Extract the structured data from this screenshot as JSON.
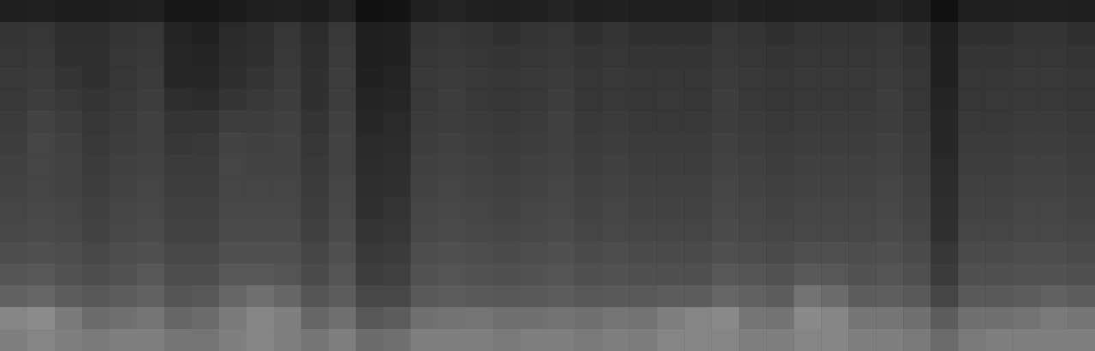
{
  "chart_data": {
    "type": "heatmap",
    "tick_labels": false,
    "grid": false,
    "cells": [
      [
        12,
        13,
        11,
        11,
        12,
        13,
        9,
        9,
        10,
        12,
        13,
        11,
        14,
        7,
        8,
        13,
        14,
        13,
        12,
        13,
        14,
        12,
        13,
        12,
        12,
        12,
        14,
        13,
        12,
        13,
        13,
        13,
        14,
        12,
        7,
        12,
        12,
        13,
        13,
        12
      ],
      [
        20,
        21,
        18,
        18,
        20,
        21,
        14,
        13,
        16,
        18,
        21,
        17,
        22,
        12,
        13,
        20,
        21,
        20,
        19,
        20,
        21,
        19,
        20,
        19,
        19,
        19,
        21,
        20,
        19,
        20,
        20,
        20,
        21,
        19,
        12,
        19,
        19,
        20,
        20,
        19
      ],
      [
        21,
        22,
        19,
        19,
        21,
        22,
        15,
        14,
        17,
        19,
        22,
        18,
        23,
        12,
        13,
        21,
        22,
        21,
        20,
        21,
        22,
        20,
        21,
        20,
        20,
        20,
        22,
        21,
        20,
        21,
        21,
        21,
        22,
        20,
        13,
        20,
        20,
        21,
        21,
        20
      ],
      [
        22,
        23,
        20,
        19,
        21,
        23,
        15,
        15,
        18,
        20,
        23,
        19,
        24,
        13,
        14,
        22,
        23,
        22,
        21,
        22,
        23,
        21,
        22,
        21,
        21,
        21,
        23,
        22,
        21,
        22,
        22,
        22,
        23,
        21,
        13,
        21,
        21,
        22,
        22,
        21
      ],
      [
        22,
        24,
        22,
        20,
        22,
        24,
        18,
        17,
        20,
        22,
        24,
        19,
        24,
        14,
        15,
        22,
        24,
        22,
        21,
        22,
        24,
        21,
        22,
        21,
        22,
        21,
        24,
        22,
        21,
        22,
        22,
        22,
        24,
        21,
        14,
        21,
        22,
        22,
        22,
        21
      ],
      [
        23,
        26,
        24,
        21,
        23,
        25,
        20,
        20,
        24,
        24,
        25,
        20,
        25,
        15,
        16,
        23,
        24,
        23,
        22,
        23,
        25,
        22,
        23,
        22,
        22,
        22,
        24,
        23,
        22,
        23,
        23,
        23,
        24,
        22,
        15,
        22,
        22,
        23,
        23,
        22
      ],
      [
        24,
        27,
        25,
        22,
        24,
        25,
        21,
        22,
        26,
        25,
        26,
        21,
        26,
        16,
        17,
        24,
        25,
        24,
        23,
        24,
        25,
        23,
        24,
        23,
        23,
        23,
        25,
        24,
        23,
        24,
        24,
        24,
        25,
        23,
        15,
        23,
        23,
        24,
        24,
        23
      ],
      [
        25,
        27,
        26,
        23,
        25,
        26,
        23,
        23,
        27,
        26,
        26,
        22,
        26,
        17,
        18,
        25,
        26,
        25,
        24,
        25,
        26,
        24,
        25,
        24,
        24,
        24,
        26,
        25,
        24,
        25,
        25,
        25,
        26,
        24,
        16,
        24,
        24,
        25,
        25,
        24
      ],
      [
        26,
        27,
        26,
        24,
        26,
        27,
        24,
        24,
        27,
        27,
        27,
        23,
        27,
        18,
        19,
        26,
        27,
        26,
        25,
        26,
        27,
        25,
        26,
        25,
        25,
        25,
        27,
        26,
        25,
        26,
        26,
        26,
        27,
        25,
        17,
        25,
        25,
        26,
        26,
        25
      ],
      [
        27,
        28,
        27,
        25,
        27,
        28,
        25,
        25,
        28,
        28,
        28,
        24,
        28,
        19,
        20,
        27,
        28,
        27,
        26,
        27,
        28,
        26,
        27,
        26,
        26,
        26,
        28,
        27,
        26,
        27,
        27,
        27,
        28,
        26,
        18,
        26,
        26,
        27,
        27,
        26
      ],
      [
        28,
        29,
        28,
        26,
        28,
        29,
        26,
        26,
        29,
        29,
        29,
        25,
        29,
        20,
        21,
        28,
        29,
        28,
        27,
        28,
        29,
        27,
        28,
        27,
        27,
        27,
        29,
        28,
        27,
        28,
        28,
        28,
        29,
        27,
        19,
        27,
        27,
        28,
        28,
        27
      ],
      [
        30,
        31,
        30,
        28,
        30,
        31,
        28,
        28,
        31,
        31,
        31,
        27,
        31,
        22,
        23,
        30,
        31,
        30,
        29,
        30,
        31,
        29,
        30,
        29,
        29,
        29,
        31,
        30,
        29,
        31,
        31,
        30,
        31,
        29,
        21,
        29,
        29,
        30,
        30,
        29
      ],
      [
        33,
        34,
        32,
        30,
        32,
        34,
        30,
        30,
        34,
        34,
        33,
        29,
        33,
        24,
        25,
        32,
        33,
        32,
        31,
        32,
        33,
        31,
        32,
        31,
        31,
        31,
        34,
        33,
        32,
        35,
        34,
        32,
        33,
        31,
        23,
        31,
        31,
        32,
        32,
        31
      ],
      [
        38,
        40,
        36,
        34,
        36,
        38,
        33,
        34,
        40,
        44,
        40,
        33,
        36,
        28,
        28,
        35,
        36,
        35,
        34,
        35,
        36,
        34,
        35,
        35,
        36,
        36,
        40,
        38,
        36,
        45,
        42,
        36,
        37,
        35,
        27,
        35,
        35,
        36,
        38,
        36
      ],
      [
        52,
        55,
        48,
        42,
        44,
        46,
        40,
        42,
        48,
        52,
        50,
        40,
        44,
        34,
        36,
        44,
        45,
        46,
        44,
        44,
        45,
        44,
        46,
        45,
        50,
        52,
        54,
        46,
        45,
        54,
        52,
        46,
        46,
        44,
        36,
        44,
        44,
        45,
        48,
        46
      ],
      [
        50,
        52,
        50,
        48,
        50,
        50,
        46,
        46,
        50,
        52,
        50,
        46,
        50,
        42,
        44,
        50,
        50,
        50,
        48,
        50,
        50,
        48,
        50,
        49,
        52,
        52,
        52,
        50,
        50,
        52,
        52,
        50,
        50,
        48,
        42,
        48,
        50,
        50,
        50,
        50
      ]
    ]
  }
}
